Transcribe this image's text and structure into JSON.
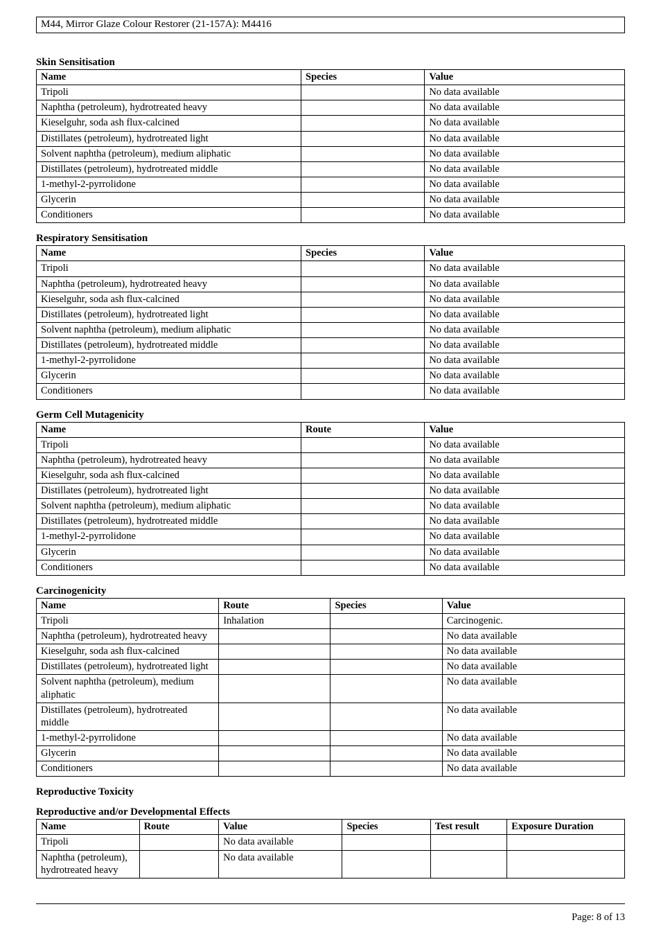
{
  "doc_title": "M44, Mirror Glaze Colour Restorer (21-157A): M4416",
  "no_data": "No data available",
  "chem_names": {
    "tripoli": "Tripoli",
    "naphtha_heavy": "Naphtha (petroleum), hydrotreated heavy",
    "kieselguhr": "Kieselguhr, soda ash flux-calcined",
    "dist_light": "Distillates (petroleum), hydrotreated light",
    "solvent_naphtha": "Solvent naphtha (petroleum), medium aliphatic",
    "dist_middle": "Distillates (petroleum), hydrotreated middle",
    "methyl_pyr": "1-methyl-2-pyrrolidone",
    "glycerin": "Glycerin",
    "conditioners": "Conditioners",
    "naphtha_pet": "Naphtha (petroleum), hydrotreated heavy",
    "dist_light_m": "Distillates (petroleum), hydrotreated light",
    "solvent_naphtha_m": "Solvent naphtha (petroleum), medium aliphatic",
    "dist_middle_m": "Distillates (petroleum), hydrotreated middle"
  },
  "headers": {
    "name": "Name",
    "species": "Species",
    "value": "Value",
    "route": "Route",
    "test_result": "Test result",
    "exposure_duration": "Exposure Duration"
  },
  "sections": {
    "skin": "Skin Sensitisation",
    "resp": "Respiratory Sensitisation",
    "germ": "Germ Cell Mutagenicity",
    "carc": "Carcinogenicity",
    "repro_tox": "Reproductive Toxicity",
    "repro_eff": "Reproductive and/or Developmental Effects"
  },
  "carc": {
    "tripoli_route": "Inhalation",
    "tripoli_value": "Carcinogenic."
  },
  "repro_rows": {
    "tripoli_value": "No data available",
    "naphtha_label": "Naphtha (petroleum), hydrotreated heavy",
    "naphtha_value": "No data available"
  },
  "footer": "Page: 8 of  13"
}
